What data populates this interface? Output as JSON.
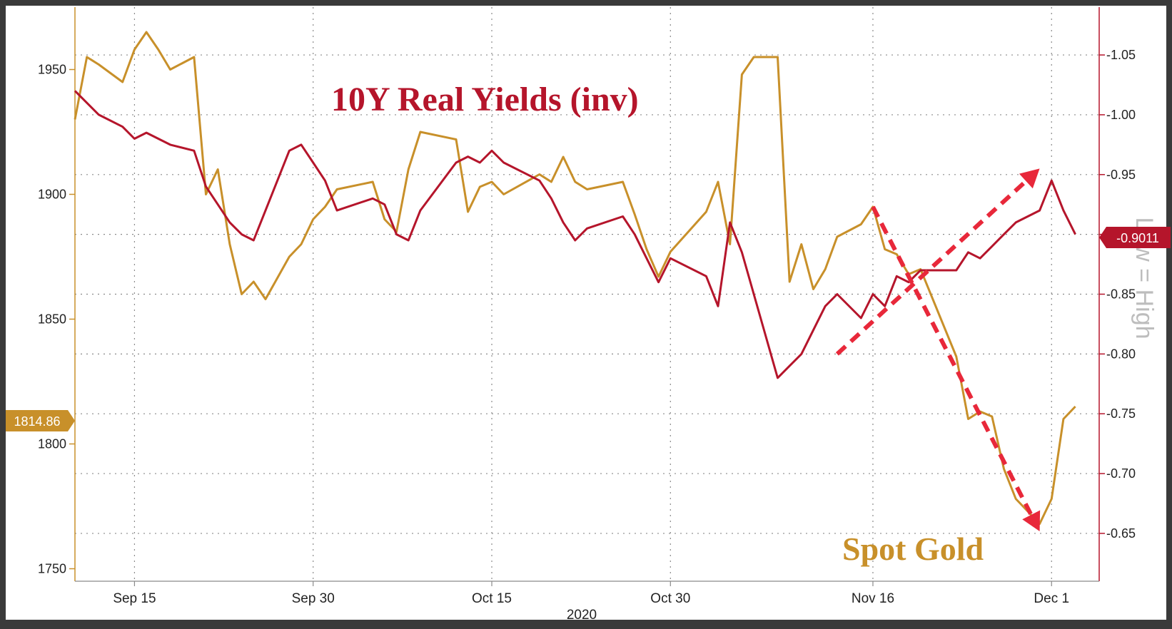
{
  "colors": {
    "gold": "#c8902a",
    "real_yields": "#b5152b",
    "arrow": "#e8283a",
    "grid": "#8a8a8a",
    "frame": "#3a3a3a",
    "watermark": "#bdbdbd"
  },
  "chart_data": {
    "type": "line",
    "title": "10Y Real Yields (inv)",
    "xlabel": "2020",
    "x_ticks": [
      "Sep 15",
      "Sep 30",
      "Oct 15",
      "Oct 30",
      "Nov 16",
      "Dec 1"
    ],
    "x_range": [
      "2020-09-10",
      "2020-12-05"
    ],
    "left_axis": {
      "ticks": [
        "1750",
        "1800",
        "1850",
        "1900",
        "1950"
      ],
      "range": [
        1745,
        1975
      ],
      "last_value_label": "1814.86"
    },
    "right_axis": {
      "ticks": [
        "-1.05",
        "-1.00",
        "-0.95",
        "-0.90",
        "-0.85",
        "-0.80",
        "-0.75",
        "-0.70",
        "-0.65"
      ],
      "range": [
        -1.09,
        -0.61
      ],
      "inverted": true,
      "last_value_label": "-0.9011",
      "side_label": "Low = High"
    },
    "grid": true,
    "series": [
      {
        "name": "Spot Gold",
        "axis": "left",
        "x": [
          "2020-09-10",
          "2020-09-11",
          "2020-09-12",
          "2020-09-14",
          "2020-09-15",
          "2020-09-16",
          "2020-09-17",
          "2020-09-18",
          "2020-09-20",
          "2020-09-21",
          "2020-09-22",
          "2020-09-23",
          "2020-09-24",
          "2020-09-25",
          "2020-09-26",
          "2020-09-28",
          "2020-09-29",
          "2020-09-30",
          "2020-10-01",
          "2020-10-02",
          "2020-10-05",
          "2020-10-06",
          "2020-10-07",
          "2020-10-08",
          "2020-10-09",
          "2020-10-12",
          "2020-10-13",
          "2020-10-14",
          "2020-10-15",
          "2020-10-16",
          "2020-10-19",
          "2020-10-20",
          "2020-10-21",
          "2020-10-22",
          "2020-10-23",
          "2020-10-26",
          "2020-10-27",
          "2020-10-28",
          "2020-10-29",
          "2020-10-30",
          "2020-11-02",
          "2020-11-03",
          "2020-11-04",
          "2020-11-05",
          "2020-11-06",
          "2020-11-08",
          "2020-11-09",
          "2020-11-10",
          "2020-11-11",
          "2020-11-12",
          "2020-11-13",
          "2020-11-15",
          "2020-11-16",
          "2020-11-17",
          "2020-11-18",
          "2020-11-19",
          "2020-11-20",
          "2020-11-23",
          "2020-11-24",
          "2020-11-25",
          "2020-11-26",
          "2020-11-27",
          "2020-11-28",
          "2020-11-30",
          "2020-12-01",
          "2020-12-02",
          "2020-12-03"
        ],
        "values": [
          1930,
          1955,
          1952,
          1945,
          1958,
          1965,
          1958,
          1950,
          1955,
          1900,
          1910,
          1880,
          1860,
          1865,
          1858,
          1875,
          1880,
          1890,
          1895,
          1902,
          1905,
          1890,
          1885,
          1910,
          1925,
          1922,
          1893,
          1903,
          1905,
          1900,
          1908,
          1905,
          1915,
          1905,
          1902,
          1905,
          1892,
          1878,
          1867,
          1877,
          1893,
          1905,
          1880,
          1948,
          1955,
          1955,
          1865,
          1880,
          1862,
          1870,
          1883,
          1888,
          1895,
          1878,
          1876,
          1868,
          1870,
          1835,
          1810,
          1813,
          1811,
          1790,
          1778,
          1768,
          1778,
          1810,
          1815
        ]
      },
      {
        "name": "10Y Real Yields (inv)",
        "axis": "right",
        "x": [
          "2020-09-10",
          "2020-09-11",
          "2020-09-12",
          "2020-09-14",
          "2020-09-15",
          "2020-09-16",
          "2020-09-17",
          "2020-09-18",
          "2020-09-20",
          "2020-09-21",
          "2020-09-22",
          "2020-09-23",
          "2020-09-24",
          "2020-09-25",
          "2020-09-26",
          "2020-09-28",
          "2020-09-29",
          "2020-09-30",
          "2020-10-01",
          "2020-10-02",
          "2020-10-05",
          "2020-10-06",
          "2020-10-07",
          "2020-10-08",
          "2020-10-09",
          "2020-10-12",
          "2020-10-13",
          "2020-10-14",
          "2020-10-15",
          "2020-10-16",
          "2020-10-19",
          "2020-10-20",
          "2020-10-21",
          "2020-10-22",
          "2020-10-23",
          "2020-10-26",
          "2020-10-27",
          "2020-10-28",
          "2020-10-29",
          "2020-10-30",
          "2020-11-02",
          "2020-11-03",
          "2020-11-04",
          "2020-11-05",
          "2020-11-06",
          "2020-11-08",
          "2020-11-09",
          "2020-11-10",
          "2020-11-11",
          "2020-11-12",
          "2020-11-13",
          "2020-11-15",
          "2020-11-16",
          "2020-11-17",
          "2020-11-18",
          "2020-11-19",
          "2020-11-20",
          "2020-11-23",
          "2020-11-24",
          "2020-11-25",
          "2020-11-26",
          "2020-11-27",
          "2020-11-28",
          "2020-11-30",
          "2020-12-01",
          "2020-12-02",
          "2020-12-03"
        ],
        "values": [
          -1.02,
          -1.01,
          -1.0,
          -0.99,
          -0.98,
          -0.985,
          -0.98,
          -0.975,
          -0.97,
          -0.94,
          -0.925,
          -0.91,
          -0.9,
          -0.895,
          -0.92,
          -0.97,
          -0.975,
          -0.96,
          -0.945,
          -0.92,
          -0.93,
          -0.925,
          -0.9,
          -0.895,
          -0.92,
          -0.96,
          -0.965,
          -0.96,
          -0.97,
          -0.96,
          -0.945,
          -0.93,
          -0.91,
          -0.895,
          -0.905,
          -0.915,
          -0.9,
          -0.88,
          -0.86,
          -0.88,
          -0.865,
          -0.84,
          -0.91,
          -0.885,
          -0.85,
          -0.78,
          -0.79,
          -0.8,
          -0.82,
          -0.84,
          -0.85,
          -0.83,
          -0.85,
          -0.84,
          -0.865,
          -0.86,
          -0.87,
          -0.87,
          -0.885,
          -0.88,
          -0.89,
          -0.9,
          -0.91,
          -0.92,
          -0.945,
          -0.92,
          -0.9
        ]
      }
    ],
    "annotations": [
      {
        "text": "10Y Real Yields (inv)",
        "series": "10Y Real Yields (inv)"
      },
      {
        "text": "Spot Gold",
        "series": "Spot Gold"
      },
      {
        "type": "arrow",
        "from": [
          "2020-11-16",
          1895,
          "left"
        ],
        "to": [
          "2020-11-30",
          1765,
          "left"
        ]
      },
      {
        "type": "arrow",
        "from": [
          "2020-11-13",
          -0.8,
          "right"
        ],
        "to": [
          "2020-11-30",
          -0.955,
          "right"
        ]
      }
    ]
  }
}
